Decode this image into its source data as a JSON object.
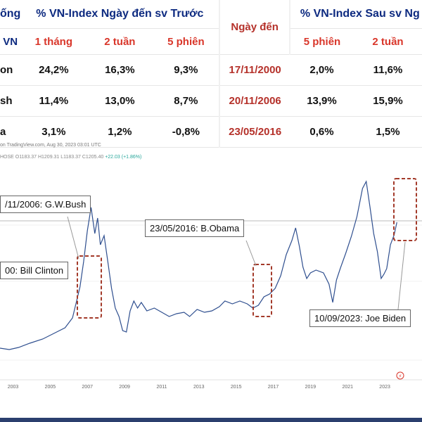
{
  "table": {
    "group_header_1": "% VN-Index Ngày đến sv Trước",
    "group_header_2": "% VN-Index Sau sv Ng",
    "left_header_top": "ống",
    "left_header_bottom": "VN",
    "date_header": "Ngày đến",
    "sub_headers": [
      "1 tháng",
      "2 tuần",
      "5 phiên",
      "5 phiên",
      "2 tuần"
    ],
    "rows": [
      {
        "name": "on",
        "before": [
          "24,2%",
          "16,3%",
          "9,3%"
        ],
        "date": "17/11/2000",
        "after": [
          "2,0%",
          "11,6%"
        ]
      },
      {
        "name": "sh",
        "before": [
          "11,4%",
          "13,0%",
          "8,7%"
        ],
        "date": "20/11/2006",
        "after": [
          "13,9%",
          "15,9%"
        ]
      },
      {
        "name": "a",
        "before": [
          "3,1%",
          "1,2%",
          "-0,8%"
        ],
        "date": "23/05/2016",
        "after": [
          "0,6%",
          "1,5%"
        ]
      }
    ]
  },
  "chart_meta": {
    "source_line": "on TradingView.com, Aug 30, 2023 03:01 UTC",
    "ohlc_line": "HOSE  O1183.37  H1209.31  L1183.37  C1205.40",
    "change": "+22.03 (+1.86%)"
  },
  "annotations": {
    "bush": "/11/2006: G.W.Bush",
    "obama": "23/05/2016: B.Obama",
    "clinton": "00: Bill Clinton",
    "biden": "10/09/2023: Joe Biden"
  },
  "chart_data": {
    "type": "line",
    "xlabel": "",
    "ylabel": "",
    "x_ticks": [
      "2003",
      "2005",
      "2007",
      "2009",
      "2011",
      "2013",
      "2015",
      "2017",
      "2019",
      "2021",
      "2023"
    ],
    "xlim": [
      2002.3,
      2025
    ],
    "reference_line": "horizontal line at the 2007 peak level",
    "series": [
      {
        "x": [
          2002.3,
          2002.8,
          2003.3,
          2003.9,
          2004.6,
          2005.2,
          2005.8,
          2006.2,
          2006.4,
          2006.6,
          2006.8,
          2007.0,
          2007.2,
          2007.4,
          2007.55,
          2007.7,
          2007.9,
          2008.1,
          2008.3,
          2008.5,
          2008.7,
          2008.9,
          2009.1,
          2009.3,
          2009.5,
          2009.7,
          2009.9,
          2010.2,
          2010.6,
          2011.0,
          2011.4,
          2011.8,
          2012.2,
          2012.5,
          2012.9,
          2013.3,
          2013.7,
          2014.1,
          2014.4,
          2014.8,
          2015.2,
          2015.6,
          2015.9,
          2016.2,
          2016.5,
          2016.8,
          2017.1,
          2017.4,
          2017.7,
          2018.0,
          2018.2,
          2018.4,
          2018.6,
          2018.8,
          2019.0,
          2019.3,
          2019.7,
          2020.0,
          2020.2,
          2020.4,
          2020.6,
          2020.9,
          2021.2,
          2021.5,
          2021.8,
          2022.0,
          2022.2,
          2022.4,
          2022.6,
          2022.8,
          2022.95,
          2023.1,
          2023.3,
          2023.5,
          2023.65
        ],
        "values": [
          5,
          3,
          6,
          12,
          18,
          26,
          34,
          48,
          70,
          92,
          128,
          172,
          205,
          168,
          190,
          152,
          165,
          128,
          90,
          62,
          50,
          30,
          28,
          58,
          72,
          62,
          70,
          58,
          62,
          56,
          50,
          54,
          56,
          50,
          60,
          56,
          58,
          64,
          72,
          68,
          72,
          68,
          62,
          66,
          78,
          82,
          90,
          108,
          138,
          158,
          176,
          150,
          120,
          104,
          112,
          116,
          112,
          96,
          70,
          102,
          118,
          140,
          164,
          192,
          232,
          242,
          206,
          168,
          142,
          104,
          110,
          118,
          152,
          166,
          184
        ]
      }
    ]
  }
}
